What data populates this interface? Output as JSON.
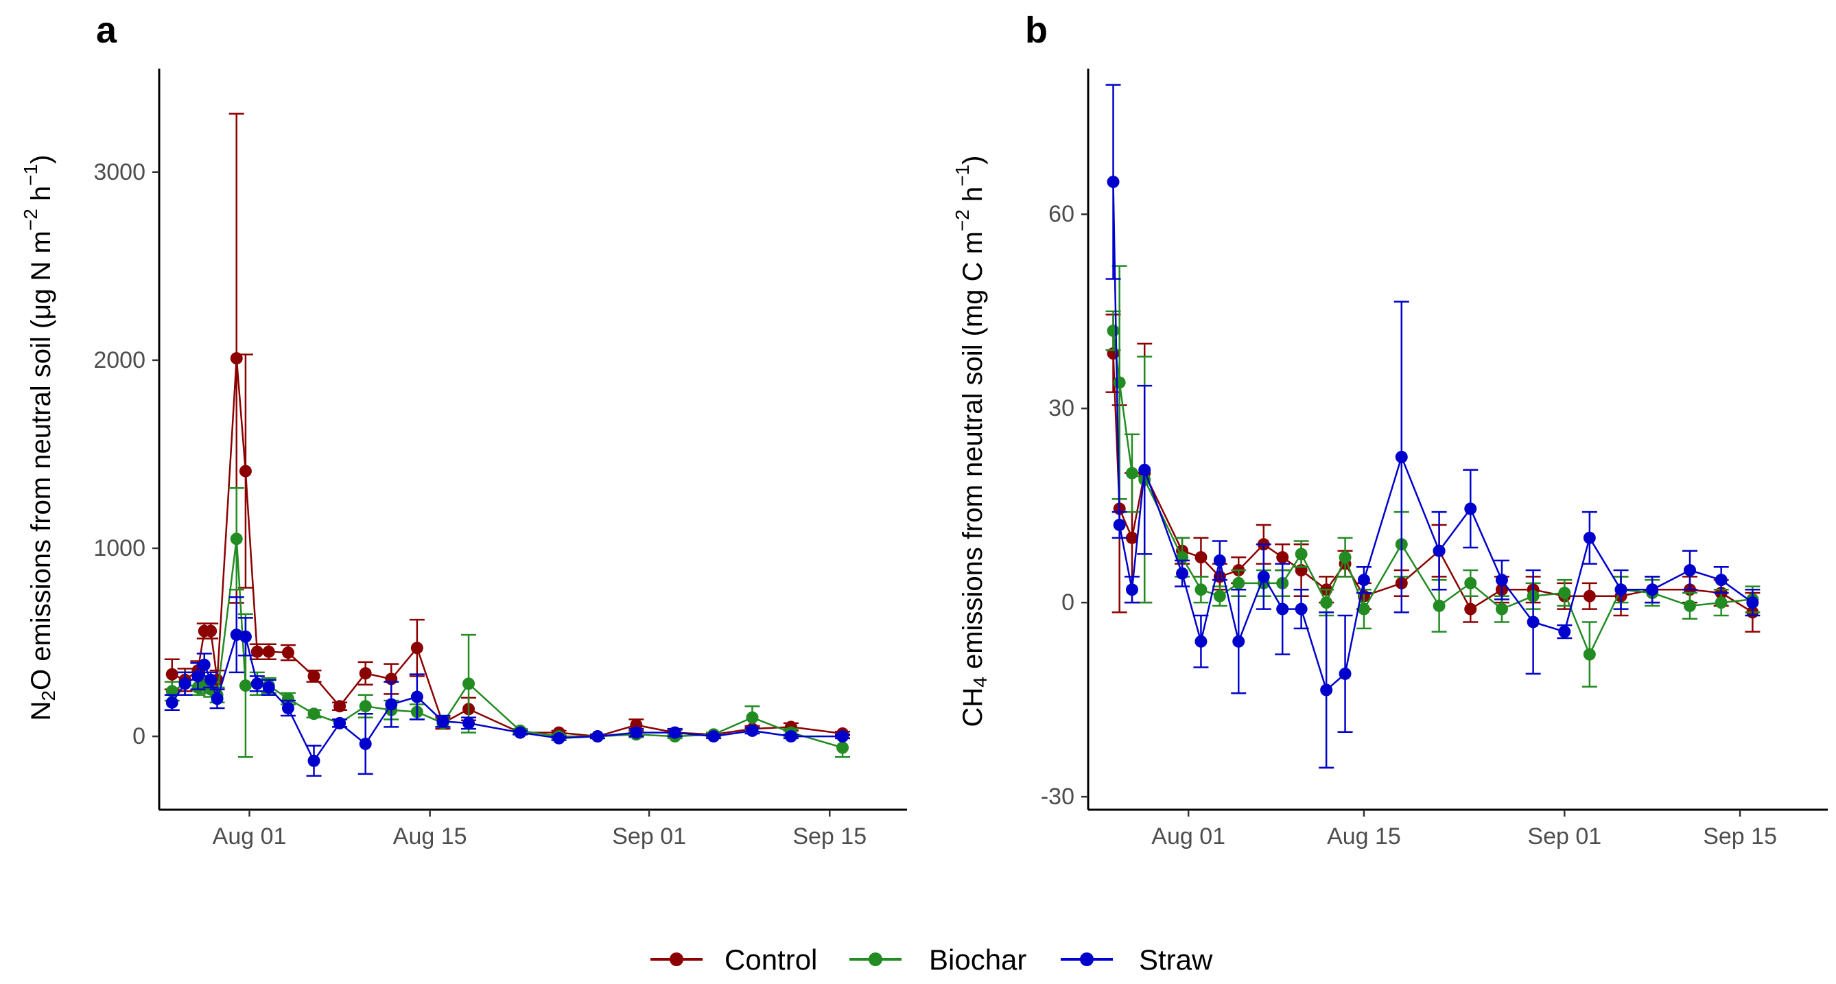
{
  "legend": {
    "items": [
      {
        "name": "Control",
        "color": "#8b0000"
      },
      {
        "name": "Biochar",
        "color": "#228b22"
      },
      {
        "name": "Straw",
        "color": "#0000cd"
      }
    ]
  },
  "chart_data": [
    {
      "type": "line",
      "panel_label": "a",
      "title": "",
      "ylabel": "N2O emissions from neutral soil (μg N m−2 h−1)",
      "ylabel_parts": {
        "pre": "N",
        "sub": "2",
        "mid": "O emissions from neutral soil (",
        "mu": "μ",
        "post": "g N m",
        "sup1": "−2",
        "space": " h",
        "sup2": "−1",
        "close": ")"
      },
      "xlabel": "",
      "x_domain": [
        -7,
        51
      ],
      "ylim": [
        -390,
        3550
      ],
      "x_ticks": [
        {
          "value": 0,
          "label": "Aug 01"
        },
        {
          "value": 14,
          "label": "Aug 15"
        },
        {
          "value": 31,
          "label": "Sep 01"
        },
        {
          "value": 45,
          "label": "Sep 15"
        }
      ],
      "y_ticks": [
        {
          "value": 0,
          "label": "0"
        },
        {
          "value": 1000,
          "label": "1000"
        },
        {
          "value": 2000,
          "label": "2000"
        },
        {
          "value": 3000,
          "label": "3000"
        }
      ],
      "series": [
        {
          "name": "Control",
          "color": "#8b0000",
          "x": [
            -6,
            -5,
            -4,
            -3.5,
            -3,
            -2.5,
            -1,
            -0.3,
            0.6,
            1.5,
            3,
            5,
            7,
            9,
            11,
            13,
            15,
            17,
            21,
            24,
            27,
            30,
            33,
            36,
            39,
            42,
            46
          ],
          "y": [
            330,
            300,
            350,
            560,
            560,
            300,
            2010,
            1410,
            450,
            450,
            445,
            320,
            160,
            335,
            305,
            470,
            70,
            145,
            20,
            20,
            0,
            60,
            20,
            10,
            40,
            50,
            15
          ],
          "err": [
            80,
            60,
            50,
            40,
            40,
            50,
            1300,
            620,
            40,
            40,
            40,
            30,
            20,
            60,
            80,
            150,
            30,
            60,
            10,
            10,
            10,
            30,
            15,
            10,
            15,
            20,
            10
          ]
        },
        {
          "name": "Biochar",
          "color": "#228b22",
          "x": [
            -6,
            -5,
            -4,
            -3.5,
            -3,
            -2.5,
            -1,
            -0.3,
            0.6,
            1.5,
            3,
            5,
            7,
            9,
            11,
            13,
            15,
            17,
            21,
            24,
            27,
            30,
            33,
            36,
            39,
            42,
            46
          ],
          "y": [
            240,
            280,
            260,
            270,
            250,
            220,
            1050,
            270,
            280,
            270,
            200,
            120,
            70,
            160,
            140,
            130,
            70,
            280,
            30,
            0,
            0,
            10,
            0,
            10,
            100,
            20,
            -60
          ],
          "err": [
            50,
            60,
            40,
            40,
            40,
            40,
            270,
            380,
            60,
            40,
            30,
            20,
            20,
            60,
            50,
            40,
            20,
            260,
            10,
            10,
            10,
            15,
            10,
            10,
            60,
            20,
            50
          ]
        },
        {
          "name": "Straw",
          "color": "#0000cd",
          "x": [
            -6,
            -5,
            -4,
            -3.5,
            -3,
            -2.5,
            -1,
            -0.3,
            0.6,
            1.5,
            3,
            5,
            7,
            9,
            11,
            13,
            15,
            17,
            21,
            24,
            27,
            30,
            33,
            36,
            39,
            42,
            46
          ],
          "y": [
            180,
            280,
            320,
            380,
            300,
            200,
            540,
            530,
            280,
            260,
            150,
            -130,
            70,
            -40,
            170,
            210,
            80,
            70,
            20,
            -10,
            0,
            20,
            20,
            0,
            30,
            0,
            0
          ],
          "err": [
            40,
            60,
            70,
            60,
            40,
            50,
            200,
            100,
            40,
            40,
            40,
            80,
            20,
            160,
            120,
            120,
            30,
            30,
            10,
            10,
            10,
            20,
            20,
            10,
            15,
            10,
            10
          ]
        }
      ]
    },
    {
      "type": "line",
      "panel_label": "b",
      "title": "",
      "ylabel": "CH4 emissions from neutral soil (mg C m−2 h−1)",
      "ylabel_parts": {
        "pre": "CH",
        "sub": "4",
        "mid": " emissions from neutral soil (mg C m",
        "sup1": "−2",
        "space": " h",
        "sup2": "−1",
        "close": ")"
      },
      "xlabel": "",
      "x_domain": [
        -8,
        51
      ],
      "ylim": [
        -32,
        82.5
      ],
      "x_ticks": [
        {
          "value": 0,
          "label": "Aug 01"
        },
        {
          "value": 14,
          "label": "Aug 15"
        },
        {
          "value": 30,
          "label": "Sep 01"
        },
        {
          "value": 44,
          "label": "Sep 15"
        }
      ],
      "y_ticks": [
        {
          "value": -30,
          "label": "-30"
        },
        {
          "value": 0,
          "label": "0"
        },
        {
          "value": 30,
          "label": "30"
        },
        {
          "value": 60,
          "label": "60"
        }
      ],
      "series": [
        {
          "name": "Control",
          "color": "#8b0000",
          "x": [
            -6,
            -5.5,
            -4.5,
            -3.5,
            -0.5,
            1,
            2.5,
            4,
            6,
            7.5,
            9,
            11,
            12.5,
            14,
            17,
            20,
            22.5,
            25,
            27.5,
            30,
            32,
            34.5,
            37,
            40,
            42.5,
            45
          ],
          "y": [
            38.5,
            14.5,
            10,
            20,
            8,
            7,
            4,
            5,
            9,
            7,
            5,
            2,
            6,
            1,
            3,
            8,
            -1,
            2,
            2,
            1,
            1,
            1,
            2,
            2,
            1.5,
            -1.5
          ],
          "err": [
            6,
            16,
            10,
            20,
            2,
            3,
            2,
            2,
            3,
            2,
            4,
            2,
            2,
            2,
            2,
            4,
            2,
            2,
            2,
            2,
            2,
            3,
            2,
            2,
            2,
            3
          ]
        },
        {
          "name": "Biochar",
          "color": "#228b22",
          "x": [
            -6,
            -5.5,
            -4.5,
            -3.5,
            -0.5,
            1,
            2.5,
            4,
            6,
            7.5,
            9,
            11,
            12.5,
            14,
            17,
            20,
            22.5,
            25,
            27.5,
            30,
            32,
            34.5,
            37,
            40,
            42.5,
            45
          ],
          "y": [
            42,
            34,
            20,
            19,
            7,
            2,
            1,
            3,
            3,
            3,
            7.5,
            0,
            7,
            -1,
            9,
            -0.5,
            3,
            -1,
            1,
            1.5,
            -8,
            2,
            1.5,
            -0.5,
            0,
            0.5
          ],
          "err": [
            3,
            18,
            6,
            19,
            3,
            2,
            1.5,
            2,
            2,
            2,
            2,
            2,
            3,
            3,
            5,
            4,
            2,
            2,
            2,
            2,
            5,
            2,
            2,
            2,
            2,
            2
          ]
        },
        {
          "name": "Straw",
          "color": "#0000cd",
          "x": [
            -6,
            -5.5,
            -4.5,
            -3.5,
            -0.5,
            1,
            2.5,
            4,
            6,
            7.5,
            9,
            11,
            12.5,
            14,
            17,
            20,
            22.5,
            25,
            27.5,
            30,
            32,
            34.5,
            37,
            40,
            42.5,
            45
          ],
          "y": [
            65,
            12,
            2,
            20.5,
            4.5,
            -6,
            6.5,
            -6,
            4,
            -1,
            -1,
            -13.5,
            -11,
            3.5,
            22.5,
            8,
            14.5,
            3.5,
            -3,
            -4.5,
            10,
            2,
            2,
            5,
            3.5,
            0
          ],
          "err": [
            15,
            2,
            2,
            13,
            2,
            4,
            3,
            8,
            5,
            7,
            3,
            12,
            9,
            2,
            24,
            6,
            6,
            3,
            8,
            1,
            4,
            3,
            2,
            3,
            2,
            2
          ]
        }
      ]
    }
  ]
}
